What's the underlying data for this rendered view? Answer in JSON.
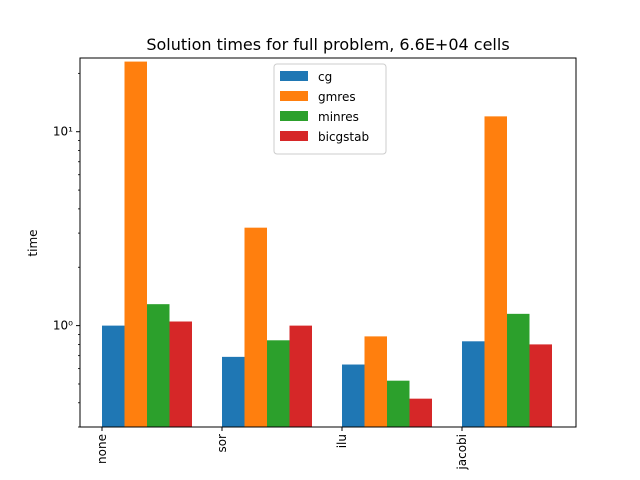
{
  "chart_data": {
    "type": "bar",
    "title": "Solution times for full problem, 6.6E+04 cells",
    "xlabel": "",
    "ylabel": "time",
    "yscale": "log",
    "ylim": [
      0.3,
      24
    ],
    "yticks": [
      {
        "value": 1,
        "label": "10⁰"
      },
      {
        "value": 10,
        "label": "10¹"
      }
    ],
    "categories": [
      "none",
      "sor",
      "ilu",
      "jacobi"
    ],
    "series": [
      {
        "name": "cg",
        "color": "#1f77b4",
        "values": [
          1.0,
          0.69,
          0.63,
          0.83
        ]
      },
      {
        "name": "gmres",
        "color": "#ff7f0e",
        "values": [
          23.0,
          3.2,
          0.88,
          12.0
        ]
      },
      {
        "name": "minres",
        "color": "#2ca02c",
        "values": [
          1.29,
          0.84,
          0.52,
          1.15
        ]
      },
      {
        "name": "bicgstab",
        "color": "#d62728",
        "values": [
          1.05,
          1.0,
          0.42,
          0.8
        ]
      }
    ],
    "legend_position": "top-center",
    "grid": false
  }
}
